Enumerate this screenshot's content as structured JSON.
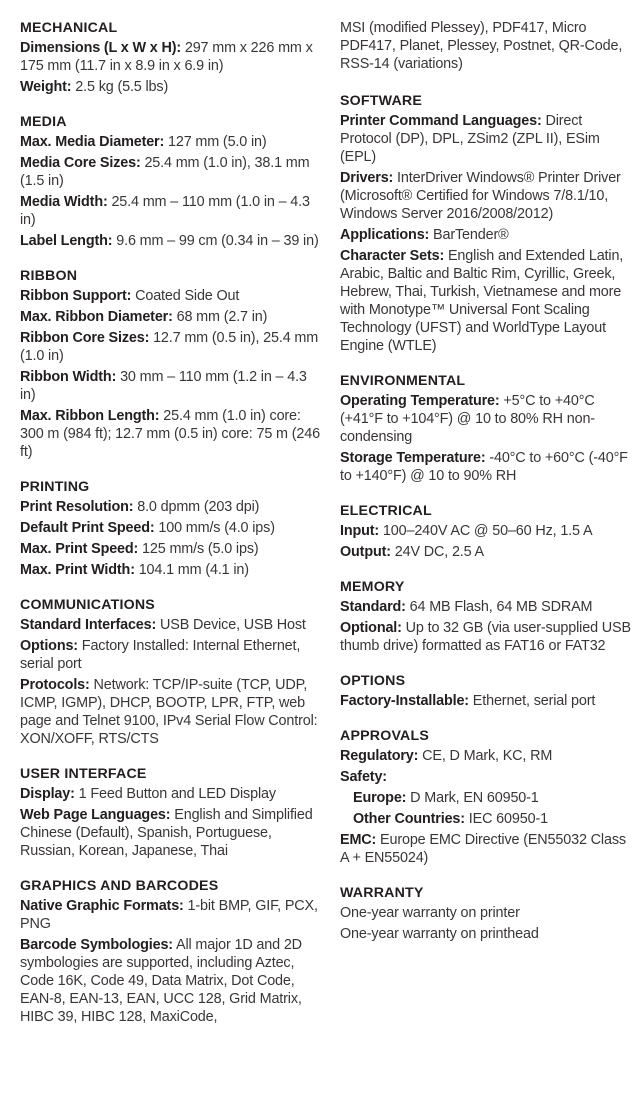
{
  "left": [
    {
      "title": "MECHANICAL",
      "items": [
        {
          "label": "Dimensions (L x W x H):",
          "value": " 297 mm x 226 mm x 175 mm (11.7 in x 8.9 in x 6.9 in)"
        },
        {
          "label": "Weight:",
          "value": " 2.5 kg (5.5 lbs)"
        }
      ]
    },
    {
      "title": "MEDIA",
      "items": [
        {
          "label": "Max. Media Diameter:",
          "value": " 127 mm (5.0 in)"
        },
        {
          "label": "Media Core Sizes:",
          "value": " 25.4 mm (1.0 in), 38.1 mm (1.5 in)"
        },
        {
          "label": "Media Width:",
          "value": " 25.4 mm – 110 mm (1.0 in – 4.3 in)"
        },
        {
          "label": "Label Length:",
          "value": " 9.6 mm – 99 cm (0.34 in – 39 in)"
        }
      ]
    },
    {
      "title": "RIBBON",
      "items": [
        {
          "label": "Ribbon Support:",
          "value": " Coated Side Out"
        },
        {
          "label": "Max. Ribbon Diameter:",
          "value": " 68 mm (2.7 in)"
        },
        {
          "label": "Ribbon Core Sizes:",
          "value": " 12.7 mm (0.5 in), 25.4 mm (1.0 in)"
        },
        {
          "label": "Ribbon Width:",
          "value": " 30 mm – 110 mm (1.2 in – 4.3 in)"
        },
        {
          "label": "Max. Ribbon Length:",
          "value": " 25.4 mm (1.0 in) core: 300 m (984 ft); 12.7 mm (0.5 in) core: 75 m (246 ft)"
        }
      ]
    },
    {
      "title": "PRINTING",
      "items": [
        {
          "label": "Print Resolution:",
          "value": " 8.0 dpmm (203 dpi)"
        },
        {
          "label": "Default Print Speed:",
          "value": " 100 mm/s (4.0 ips)"
        },
        {
          "label": "Max. Print Speed:",
          "value": " 125 mm/s (5.0 ips)"
        },
        {
          "label": "Max. Print Width:",
          "value": " 104.1 mm (4.1 in)"
        }
      ]
    },
    {
      "title": "COMMUNICATIONS",
      "items": [
        {
          "label": "Standard Interfaces:",
          "value": " USB Device, USB Host"
        },
        {
          "label": "Options:",
          "value": " Factory Installed: Internal Ethernet, serial port"
        },
        {
          "label": "Protocols:",
          "value": " Network: TCP/IP-suite (TCP, UDP, ICMP, IGMP), DHCP, BOOTP, LPR, FTP, web page and Telnet 9100, IPv4 Serial Flow Control: XON/XOFF, RTS/CTS"
        }
      ]
    },
    {
      "title": "USER INTERFACE",
      "items": [
        {
          "label": "Display:",
          "value": " 1 Feed Button and LED Display"
        },
        {
          "label": "Web Page Languages:",
          "value": " English and Simplified Chinese (Default), Spanish, Portuguese, Russian, Korean, Japanese, Thai"
        }
      ]
    },
    {
      "title": "GRAPHICS AND BARCODES",
      "items": [
        {
          "label": "Native Graphic Formats:",
          "value": " 1-bit BMP, GIF, PCX, PNG"
        },
        {
          "label": "Barcode Symbologies:",
          "value": " All major 1D and 2D symbologies are supported, including Aztec, Code 16K, Code 49, Data Matrix, Dot Code, EAN-8, EAN-13, EAN, UCC 128, Grid Matrix, HIBC 39, HIBC 128, MaxiCode,"
        }
      ]
    }
  ],
  "right_continuation": "MSI (modified Plessey), PDF417, Micro PDF417, Planet, Plessey, Postnet, QR-Code, RSS-14 (variations)",
  "right": [
    {
      "title": "SOFTWARE",
      "items": [
        {
          "label": "Printer Command Languages:",
          "value": " Direct Protocol (DP), DPL, ZSim2 (ZPL II), ESim (EPL)"
        },
        {
          "label": "Drivers:",
          "value": " InterDriver Windows® Printer Driver (Microsoft® Certified for Windows 7/8.1/10, Windows Server 2016/2008/2012)"
        },
        {
          "label": "Applications:",
          "value": " BarTender®"
        },
        {
          "label": "Character Sets:",
          "value": " English and Extended Latin, Arabic, Baltic and Baltic Rim, Cyrillic, Greek, Hebrew, Thai, Turkish, Vietnamese and more with Monotype™ Universal Font Scaling Technology (UFST) and WorldType Layout Engine (WTLE)"
        }
      ]
    },
    {
      "title": "ENVIRONMENTAL",
      "items": [
        {
          "label": "Operating Temperature:",
          "value": " +5°C to +40°C (+41°F to +104°F) @ 10 to 80% RH non-condensing"
        },
        {
          "label": "Storage Temperature:",
          "value": " -40°C to +60°C (-40°F to +140°F) @ 10 to 90% RH"
        }
      ]
    },
    {
      "title": "ELECTRICAL",
      "items": [
        {
          "label": "Input:",
          "value": " 100–240V AC @ 50–60 Hz, 1.5 A"
        },
        {
          "label": "Output:",
          "value": " 24V DC, 2.5 A"
        }
      ]
    },
    {
      "title": "MEMORY",
      "items": [
        {
          "label": "Standard:",
          "value": " 64 MB Flash, 64 MB SDRAM"
        },
        {
          "label": "Optional:",
          "value": " Up to 32 GB (via user-supplied USB thumb drive) formatted as FAT16 or FAT32"
        }
      ]
    },
    {
      "title": "OPTIONS",
      "items": [
        {
          "label": "Factory-Installable:",
          "value": " Ethernet, serial port"
        }
      ]
    },
    {
      "title": "APPROVALS",
      "items": [
        {
          "label": "Regulatory:",
          "value": " CE, D Mark, KC, RM"
        },
        {
          "label": "Safety:",
          "value": ""
        },
        {
          "label": "Europe:",
          "value": " D Mark, EN 60950-1",
          "sub": true
        },
        {
          "label": "Other Countries:",
          "value": " IEC 60950-1",
          "sub": true
        },
        {
          "label": "EMC:",
          "value": " Europe EMC Directive (EN55032 Class A + EN55024)"
        }
      ]
    },
    {
      "title": "WARRANTY",
      "items": [
        {
          "label": "",
          "value": "One-year warranty on printer"
        },
        {
          "label": "",
          "value": "One-year warranty on printhead"
        }
      ]
    }
  ]
}
